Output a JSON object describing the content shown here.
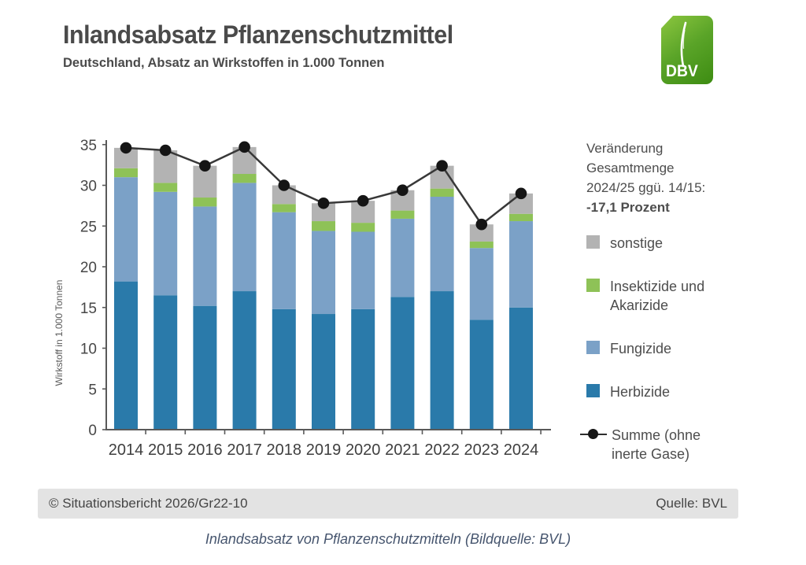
{
  "header": {
    "title": "Inlandsabsatz Pflanzenschutzmittel",
    "subtitle": "Deutschland, Absatz an Wirkstoffen in 1.000 Tonnen"
  },
  "logo": {
    "text": "DBV",
    "color_top": "#8cc63f",
    "color_bottom": "#3d8c12"
  },
  "chart_data": {
    "type": "bar",
    "stacked": true,
    "title": "Inlandsabsatz Pflanzenschutzmittel",
    "categories": [
      "2014",
      "2015",
      "2016",
      "2017",
      "2018",
      "2019",
      "2020",
      "2021",
      "2022",
      "2023",
      "2024"
    ],
    "series": [
      {
        "name": "Herbizide",
        "color": "#2a7aaa",
        "values": [
          18.2,
          16.5,
          15.2,
          17.0,
          14.8,
          14.2,
          14.8,
          16.3,
          17.0,
          13.5,
          15.0
        ]
      },
      {
        "name": "Fungizide",
        "color": "#7ba1c7",
        "values": [
          12.8,
          12.7,
          12.2,
          13.3,
          11.9,
          10.2,
          9.5,
          9.6,
          11.6,
          8.8,
          10.6
        ]
      },
      {
        "name": "Insektizide und Akarizide",
        "color": "#8ec257",
        "values": [
          1.1,
          1.1,
          1.1,
          1.1,
          1.0,
          1.2,
          1.1,
          1.0,
          1.0,
          0.8,
          0.9
        ]
      },
      {
        "name": "sonstige",
        "color": "#b3b3b3",
        "values": [
          2.5,
          4.0,
          3.9,
          3.3,
          2.3,
          2.2,
          2.7,
          2.5,
          2.8,
          2.1,
          2.5
        ]
      }
    ],
    "line_series": {
      "name": "Summe (ohne inerte Gase)",
      "color": "#383838",
      "dot_color": "#151515",
      "values": [
        34.6,
        34.3,
        32.4,
        34.7,
        30.0,
        27.8,
        28.1,
        29.4,
        32.4,
        25.2,
        29.0
      ]
    },
    "xlabel": "",
    "ylabel": "Wirkstoff in 1.000 Tonnen",
    "ylim": [
      0,
      35
    ],
    "ytick_step": 5,
    "grid": false,
    "legend_position": "right"
  },
  "annotation": {
    "line1": "Veränderung",
    "line2": "Gesamtmenge",
    "line3": "2024/25 ggü. 14/15:",
    "bold_line": "-17,1 Prozent"
  },
  "legend": [
    {
      "name": "sonstige",
      "label": "sonstige",
      "swatch": "square",
      "color": "#b3b3b3"
    },
    {
      "name": "insektizide",
      "label": "Insektizide und\nAkarizide",
      "swatch": "square",
      "color": "#8ec257"
    },
    {
      "name": "fungizide",
      "label": "Fungizide",
      "swatch": "square",
      "color": "#7ba1c7"
    },
    {
      "name": "herbizide",
      "label": "Herbizide",
      "swatch": "square",
      "color": "#2a7aaa"
    },
    {
      "name": "summe",
      "label": "Summe (ohne\ninerte Gase)",
      "swatch": "line-dot",
      "color": "#151515"
    }
  ],
  "footer": {
    "left": "© Situationsbericht 2026/Gr22-10",
    "right": "Quelle: BVL"
  },
  "caption": "Inlandsabsatz von Pflanzenschutzmitteln (Bildquelle: BVL)"
}
